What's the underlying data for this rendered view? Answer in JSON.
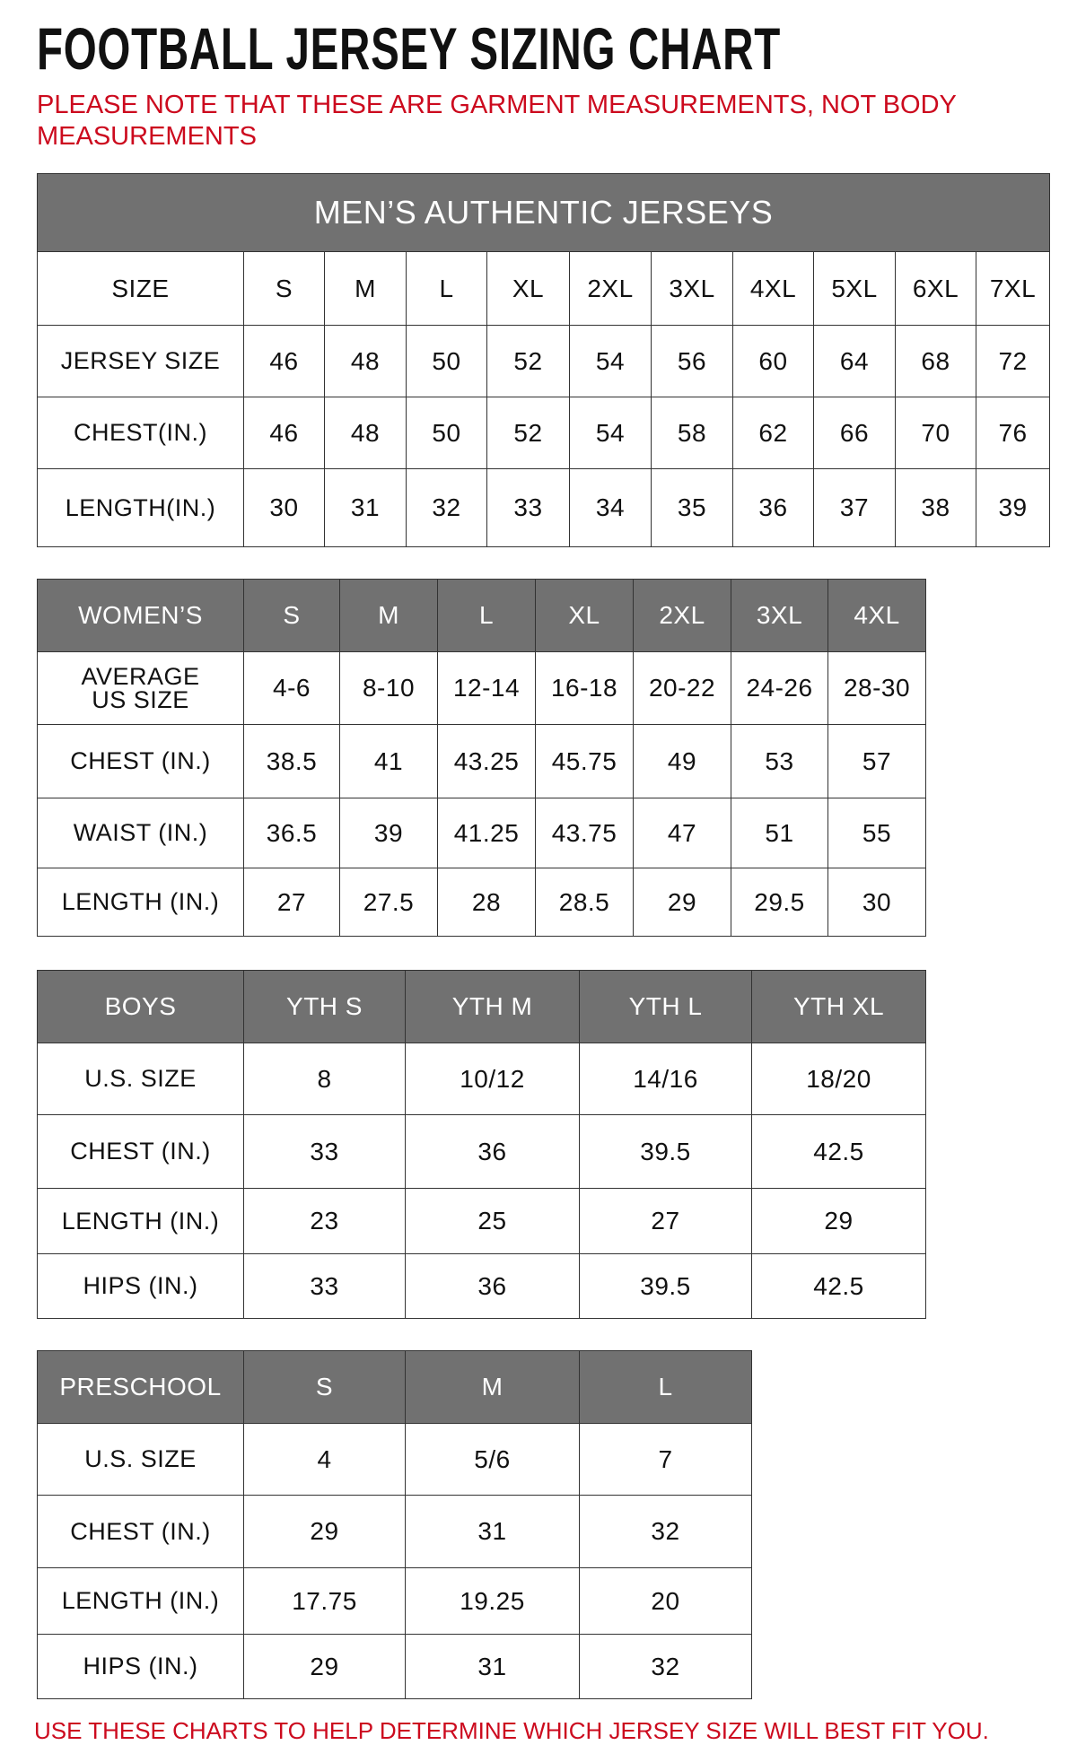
{
  "title": "FOOTBALL JERSEY SIZING CHART",
  "note": "PLEASE NOTE THAT THESE ARE GARMENT MEASUREMENTS, NOT BODY MEASUREMENTS",
  "footer": "USE THESE CHARTS TO HELP DETERMINE WHICH JERSEY SIZE WILL BEST FIT YOU.",
  "colors": {
    "header_gray": "#717171",
    "note_red": "#cc0a1e"
  },
  "tables": [
    {
      "id": "mens",
      "banner": "MEN’S AUTHENTIC JERSEYS",
      "header_in_body": true,
      "header": [
        "SIZE",
        "S",
        "M",
        "L",
        "XL",
        "2XL",
        "3XL",
        "4XL",
        "5XL",
        "6XL",
        "7XL"
      ],
      "rows": [
        [
          "JERSEY SIZE",
          "46",
          "48",
          "50",
          "52",
          "54",
          "56",
          "60",
          "64",
          "68",
          "72"
        ],
        [
          "CHEST(IN.)",
          "46",
          "48",
          "50",
          "52",
          "54",
          "58",
          "62",
          "66",
          "70",
          "76"
        ],
        [
          "LENGTH(IN.)",
          "30",
          "31",
          "32",
          "33",
          "34",
          "35",
          "36",
          "37",
          "38",
          "39"
        ]
      ]
    },
    {
      "id": "womens",
      "header": [
        "WOMEN’S",
        "S",
        "M",
        "L",
        "XL",
        "2XL",
        "3XL",
        "4XL"
      ],
      "rows": [
        [
          "AVERAGE US SIZE",
          "4-6",
          "8-10",
          "12-14",
          "16-18",
          "20-22",
          "24-26",
          "28-30"
        ],
        [
          "CHEST (IN.)",
          "38.5",
          "41",
          "43.25",
          "45.75",
          "49",
          "53",
          "57"
        ],
        [
          "WAIST (IN.)",
          "36.5",
          "39",
          "41.25",
          "43.75",
          "47",
          "51",
          "55"
        ],
        [
          "LENGTH (IN.)",
          "27",
          "27.5",
          "28",
          "28.5",
          "29",
          "29.5",
          "30"
        ]
      ]
    },
    {
      "id": "boys",
      "header": [
        "BOYS",
        "YTH S",
        "YTH M",
        "YTH L",
        "YTH XL"
      ],
      "rows": [
        [
          "U.S. SIZE",
          "8",
          "10/12",
          "14/16",
          "18/20"
        ],
        [
          "CHEST (IN.)",
          "33",
          "36",
          "39.5",
          "42.5"
        ],
        [
          "LENGTH (IN.)",
          "23",
          "25",
          "27",
          "29"
        ],
        [
          "HIPS (IN.)",
          "33",
          "36",
          "39.5",
          "42.5"
        ]
      ]
    },
    {
      "id": "preschool",
      "header": [
        "PRESCHOOL",
        "S",
        "M",
        "L"
      ],
      "rows": [
        [
          "U.S. SIZE",
          "4",
          "5/6",
          "7"
        ],
        [
          "CHEST (IN.)",
          "29",
          "31",
          "32"
        ],
        [
          "LENGTH (IN.)",
          "17.75",
          "19.25",
          "20"
        ],
        [
          "HIPS (IN.)",
          "29",
          "31",
          "32"
        ]
      ]
    }
  ]
}
